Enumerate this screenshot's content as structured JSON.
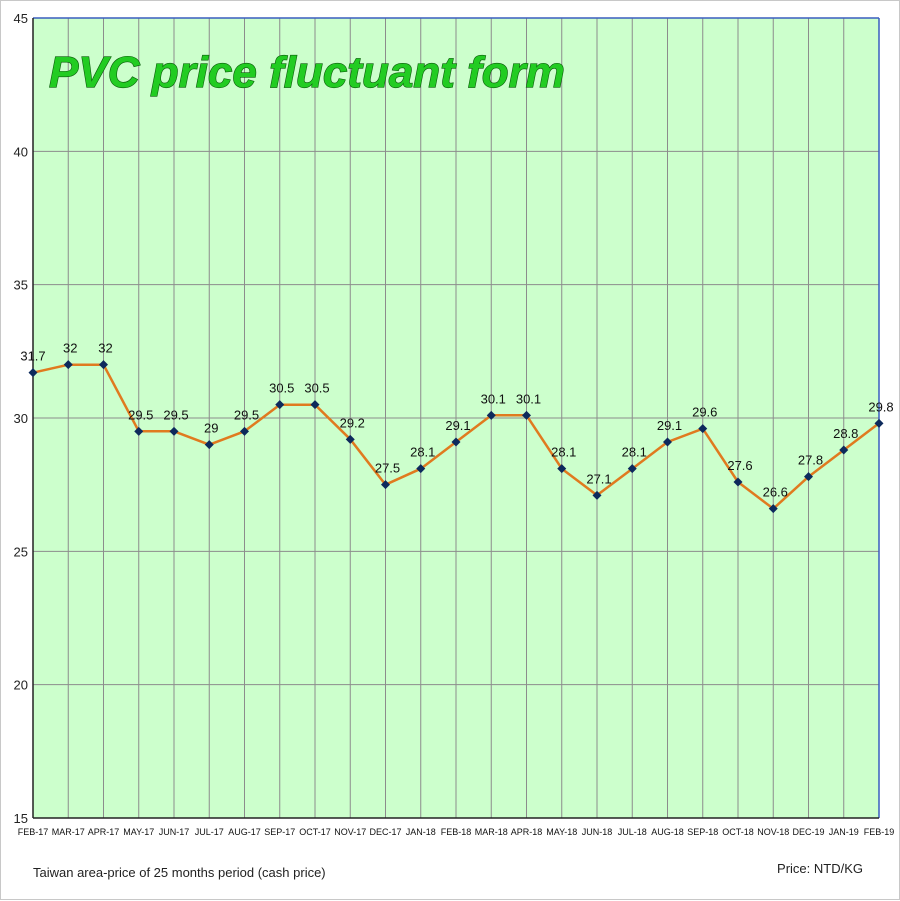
{
  "chart_data": {
    "type": "line",
    "title": "PVC price fluctuant form",
    "footnote_left": "Taiwan area-price of 25 months period (cash price)",
    "footnote_right": "Price: NTD/KG",
    "categories": [
      "FEB-17",
      "MAR-17",
      "APR-17",
      "MAY-17",
      "JUN-17",
      "JUL-17",
      "AUG-17",
      "SEP-17",
      "OCT-17",
      "NOV-17",
      "DEC-17",
      "JAN-18",
      "FEB-18",
      "MAR-18",
      "APR-18",
      "MAY-18",
      "JUN-18",
      "JUL-18",
      "AUG-18",
      "SEP-18",
      "OCT-18",
      "NOV-18",
      "DEC-19",
      "JAN-19",
      "FEB-19"
    ],
    "series": [
      {
        "values": [
          31.7,
          32,
          32,
          29.5,
          29.5,
          29,
          29.5,
          30.5,
          30.5,
          29.2,
          27.5,
          28.1,
          29.1,
          30.1,
          30.1,
          28.1,
          27.1,
          28.1,
          29.1,
          29.6,
          27.6,
          26.6,
          27.8,
          28.8,
          29.8
        ],
        "labels": [
          "31.7",
          "32",
          "32",
          "29.5",
          "29.5",
          "29",
          "29.5",
          "30.5",
          "30.5",
          "29.2",
          "27.5",
          "28.1",
          "29.1",
          "30.1",
          "30.1",
          "28.1",
          "27.1",
          "28.1",
          "29.1",
          "29.6",
          "27.6",
          "26.6",
          "27.8",
          "28.8",
          "29.8"
        ]
      }
    ],
    "yticks": [
      "15",
      "20",
      "25",
      "30",
      "35",
      "40",
      "45"
    ],
    "ylim": [
      15,
      45
    ],
    "grid": true,
    "legend": "none",
    "colors": {
      "plot_background": "#ccffcc",
      "grid": "#8c8c8c",
      "line": "#e07a1f",
      "marker": "#0d2a5c",
      "title_fill": "#22cc22",
      "title_outline": "#0a5a0a",
      "axis": "#3a5fbf"
    }
  }
}
